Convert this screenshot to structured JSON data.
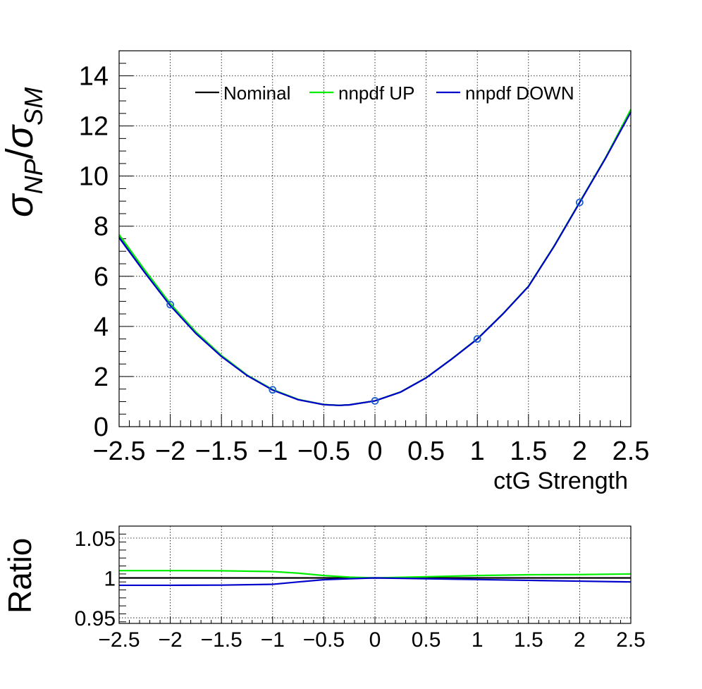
{
  "chart_data": [
    {
      "type": "line",
      "xlabel": "ctG Strength",
      "ylabel": "σNP/σSM",
      "xlim": [
        -2.5,
        2.5
      ],
      "ylim": [
        0,
        15
      ],
      "xticks": [
        "−2.5",
        "−2",
        "−1.5",
        "−1",
        "−0.5",
        "0",
        "0.5",
        "1",
        "1.5",
        "2",
        "2.5"
      ],
      "yticks": [
        "0",
        "2",
        "4",
        "6",
        "8",
        "10",
        "12",
        "14"
      ],
      "grid": true,
      "legend_position": "top",
      "series": [
        {
          "name": "Nominal",
          "color": "#000000",
          "x": [
            -2.5,
            -2.25,
            -2.0,
            -1.75,
            -1.5,
            -1.25,
            -1.0,
            -0.75,
            -0.5,
            -0.35,
            -0.25,
            0.0,
            0.25,
            0.5,
            0.75,
            1.0,
            1.25,
            1.5,
            1.75,
            2.0,
            2.25,
            2.5
          ],
          "y": [
            7.6,
            6.2,
            4.87,
            3.75,
            2.82,
            2.05,
            1.47,
            1.08,
            0.88,
            0.85,
            0.87,
            1.03,
            1.38,
            1.95,
            2.7,
            3.5,
            4.5,
            5.6,
            7.2,
            8.95,
            10.7,
            12.6
          ]
        },
        {
          "name": "nnpdf UP",
          "color": "#00ee00",
          "x": [
            -2.5,
            -2.25,
            -2.0,
            -1.75,
            -1.5,
            -1.25,
            -1.0,
            -0.75,
            -0.5,
            -0.35,
            -0.25,
            0.0,
            0.25,
            0.5,
            0.75,
            1.0,
            1.25,
            1.5,
            1.75,
            2.0,
            2.25,
            2.5
          ],
          "y": [
            7.66,
            6.25,
            4.91,
            3.78,
            2.84,
            2.06,
            1.48,
            1.085,
            0.882,
            0.851,
            0.871,
            1.03,
            1.381,
            1.952,
            2.702,
            3.503,
            4.504,
            5.605,
            7.207,
            8.958,
            10.709,
            12.66
          ]
        },
        {
          "name": "nnpdf DOWN",
          "color": "#0000cc",
          "x": [
            -2.5,
            -2.25,
            -2.0,
            -1.75,
            -1.5,
            -1.25,
            -1.0,
            -0.75,
            -0.5,
            -0.35,
            -0.25,
            0.0,
            0.25,
            0.5,
            0.75,
            1.0,
            1.25,
            1.5,
            1.75,
            2.0,
            2.25,
            2.5
          ],
          "y": [
            7.54,
            6.15,
            4.83,
            3.72,
            2.8,
            2.04,
            1.46,
            1.075,
            0.878,
            0.849,
            0.869,
            1.03,
            1.379,
            1.948,
            2.698,
            3.497,
            4.497,
            5.595,
            7.193,
            8.94,
            10.69,
            12.55
          ]
        }
      ],
      "markers": {
        "color": "#1f5fcf",
        "x": [
          -2,
          -1,
          0,
          1,
          2
        ],
        "y": [
          4.87,
          1.47,
          1.03,
          3.5,
          8.95
        ]
      }
    },
    {
      "type": "line",
      "ylabel": "Ratio",
      "xlim": [
        -2.5,
        2.5
      ],
      "ylim": [
        0.943,
        1.065
      ],
      "xticks": [
        "−2.5",
        "−2",
        "−1.5",
        "−1",
        "−0.5",
        "0",
        "0.5",
        "1",
        "1.5",
        "2",
        "2.5"
      ],
      "yticks": [
        "0.95",
        "1",
        "1.05"
      ],
      "grid": true,
      "series": [
        {
          "name": "Nominal",
          "color": "#000000",
          "x": [
            -2.5,
            2.5
          ],
          "y": [
            1.0,
            1.0
          ]
        },
        {
          "name": "nnpdf UP",
          "color": "#00ee00",
          "x": [
            -2.5,
            -2.0,
            -1.5,
            -1.0,
            -0.75,
            -0.5,
            -0.25,
            0.0,
            0.5,
            1.0,
            1.5,
            2.0,
            2.5
          ],
          "y": [
            1.0092,
            1.0092,
            1.009,
            1.008,
            1.006,
            1.003,
            1.001,
            1.0,
            1.0015,
            1.003,
            1.004,
            1.0042,
            1.005
          ]
        },
        {
          "name": "nnpdf DOWN",
          "color": "#0000cc",
          "x": [
            -2.5,
            -2.0,
            -1.5,
            -1.0,
            -0.75,
            -0.5,
            -0.25,
            0.0,
            0.5,
            1.0,
            1.5,
            2.0,
            2.5
          ],
          "y": [
            0.9908,
            0.9908,
            0.991,
            0.992,
            0.995,
            0.9978,
            0.999,
            1.0,
            0.999,
            0.998,
            0.997,
            0.996,
            0.995
          ]
        }
      ]
    }
  ]
}
